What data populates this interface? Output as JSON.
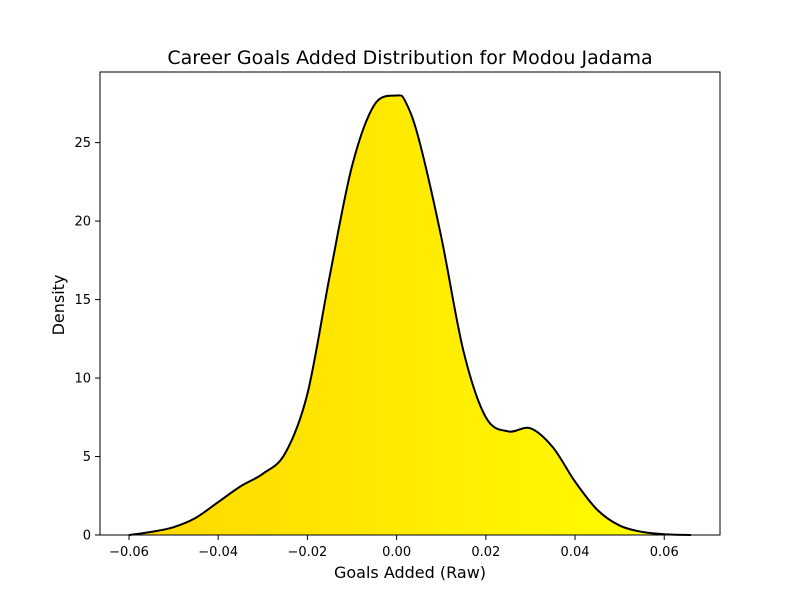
{
  "chart_data": {
    "type": "area",
    "title": "Career Goals Added Distribution for Modou Jadama",
    "xlabel": "Goals Added (Raw)",
    "ylabel": "Density",
    "xlim": [
      -0.0665,
      0.0725
    ],
    "ylim": [
      0,
      29.5
    ],
    "xticks": [
      -0.06,
      -0.04,
      -0.02,
      0.0,
      0.02,
      0.04,
      0.06
    ],
    "xtick_labels": [
      "−0.06",
      "−0.04",
      "−0.02",
      "0.00",
      "0.02",
      "0.04",
      "0.06"
    ],
    "yticks": [
      0,
      5,
      10,
      15,
      20,
      25
    ],
    "ytick_labels": [
      "0",
      "5",
      "10",
      "15",
      "20",
      "25"
    ],
    "grid": false,
    "legend": "none",
    "fill_gradient": [
      "#ffd700",
      "#ffff00"
    ],
    "line_color": "#000000",
    "series": [
      {
        "x": [
          -0.06,
          -0.055,
          -0.05,
          -0.045,
          -0.04,
          -0.035,
          -0.03,
          -0.025,
          -0.02,
          -0.015,
          -0.01,
          -0.005,
          0.0,
          0.002,
          0.005,
          0.01,
          0.015,
          0.02,
          0.025,
          0.03,
          0.035,
          0.04,
          0.045,
          0.05,
          0.055,
          0.06,
          0.066
        ],
        "y": [
          0.0,
          0.2,
          0.5,
          1.1,
          2.1,
          3.1,
          3.9,
          5.2,
          9.0,
          16.5,
          23.5,
          27.4,
          28.0,
          27.6,
          25.2,
          19.0,
          11.7,
          7.5,
          6.6,
          6.8,
          5.6,
          3.4,
          1.6,
          0.6,
          0.2,
          0.05,
          0.0
        ]
      }
    ]
  }
}
